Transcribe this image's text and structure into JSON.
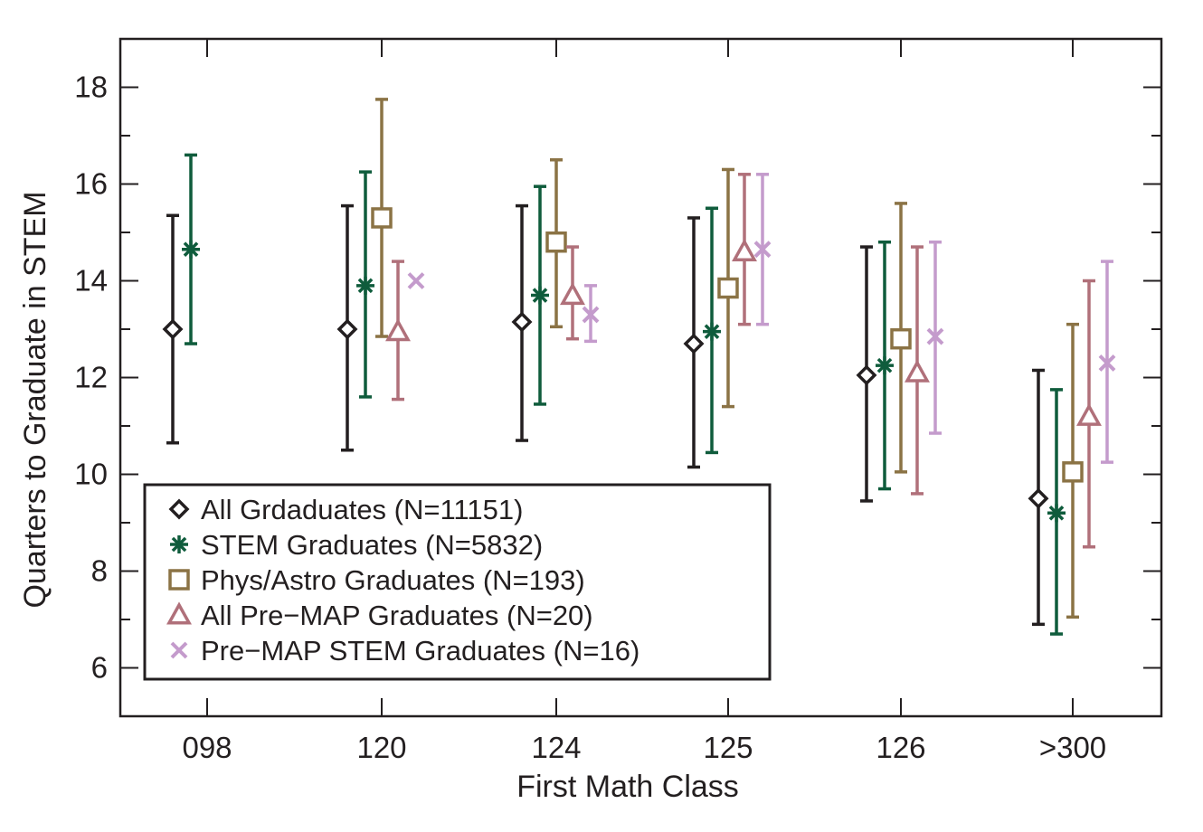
{
  "chart_data": {
    "type": "scatter",
    "title": "",
    "xlabel": "First Math Class",
    "ylabel": "Quarters to Graduate in STEM",
    "categories": [
      "098",
      "120",
      "124",
      "125",
      "126",
      ">300"
    ],
    "ylim": [
      5,
      19
    ],
    "yticks": [
      6,
      8,
      10,
      12,
      14,
      16,
      18
    ],
    "ytick_labels": [
      "6",
      "8",
      "10",
      "12",
      "14",
      "16",
      "18"
    ],
    "grid": false,
    "legend_position": "bottom-left",
    "series": [
      {
        "name": "All Grdaduates (N=11151)",
        "marker": "diamond",
        "color": "#231f20",
        "values": [
          13.0,
          13.0,
          13.15,
          12.7,
          12.05,
          9.5
        ],
        "error_low": [
          10.65,
          10.5,
          10.7,
          10.15,
          9.45,
          6.9
        ],
        "error_high": [
          15.35,
          15.55,
          15.55,
          15.3,
          14.7,
          12.15
        ]
      },
      {
        "name": "STEM Graduates (N=5832)",
        "marker": "asterisk",
        "color": "#0f5c3c",
        "values": [
          14.65,
          13.9,
          13.7,
          12.95,
          12.25,
          9.2
        ],
        "error_low": [
          12.7,
          11.6,
          11.45,
          10.45,
          9.7,
          6.7
        ],
        "error_high": [
          16.6,
          16.25,
          15.95,
          15.5,
          14.8,
          11.75
        ]
      },
      {
        "name": "Phys/Astro Graduates (N=193)",
        "marker": "square",
        "color": "#8b7345",
        "values": [
          null,
          15.3,
          14.8,
          13.85,
          12.8,
          10.05
        ],
        "error_low": [
          null,
          12.85,
          13.05,
          11.4,
          10.05,
          7.05
        ],
        "error_high": [
          null,
          17.75,
          16.5,
          16.3,
          15.6,
          13.1
        ]
      },
      {
        "name": "All Pre−MAP Graduates (N=20)",
        "marker": "triangle",
        "color": "#b0707a",
        "values": [
          null,
          12.95,
          13.7,
          14.6,
          12.1,
          11.2
        ],
        "error_low": [
          null,
          11.55,
          12.8,
          13.1,
          9.6,
          8.5
        ],
        "error_high": [
          null,
          14.4,
          14.7,
          16.2,
          14.7,
          14.0
        ]
      },
      {
        "name": "Pre−MAP STEM Graduates (N=16)",
        "marker": "cross",
        "color": "#c49bcc",
        "values": [
          null,
          14.0,
          13.3,
          14.65,
          12.85,
          12.3
        ],
        "error_low": [
          null,
          null,
          12.75,
          13.1,
          10.85,
          10.25
        ],
        "error_high": [
          null,
          null,
          13.9,
          16.2,
          14.8,
          14.4
        ]
      }
    ]
  }
}
